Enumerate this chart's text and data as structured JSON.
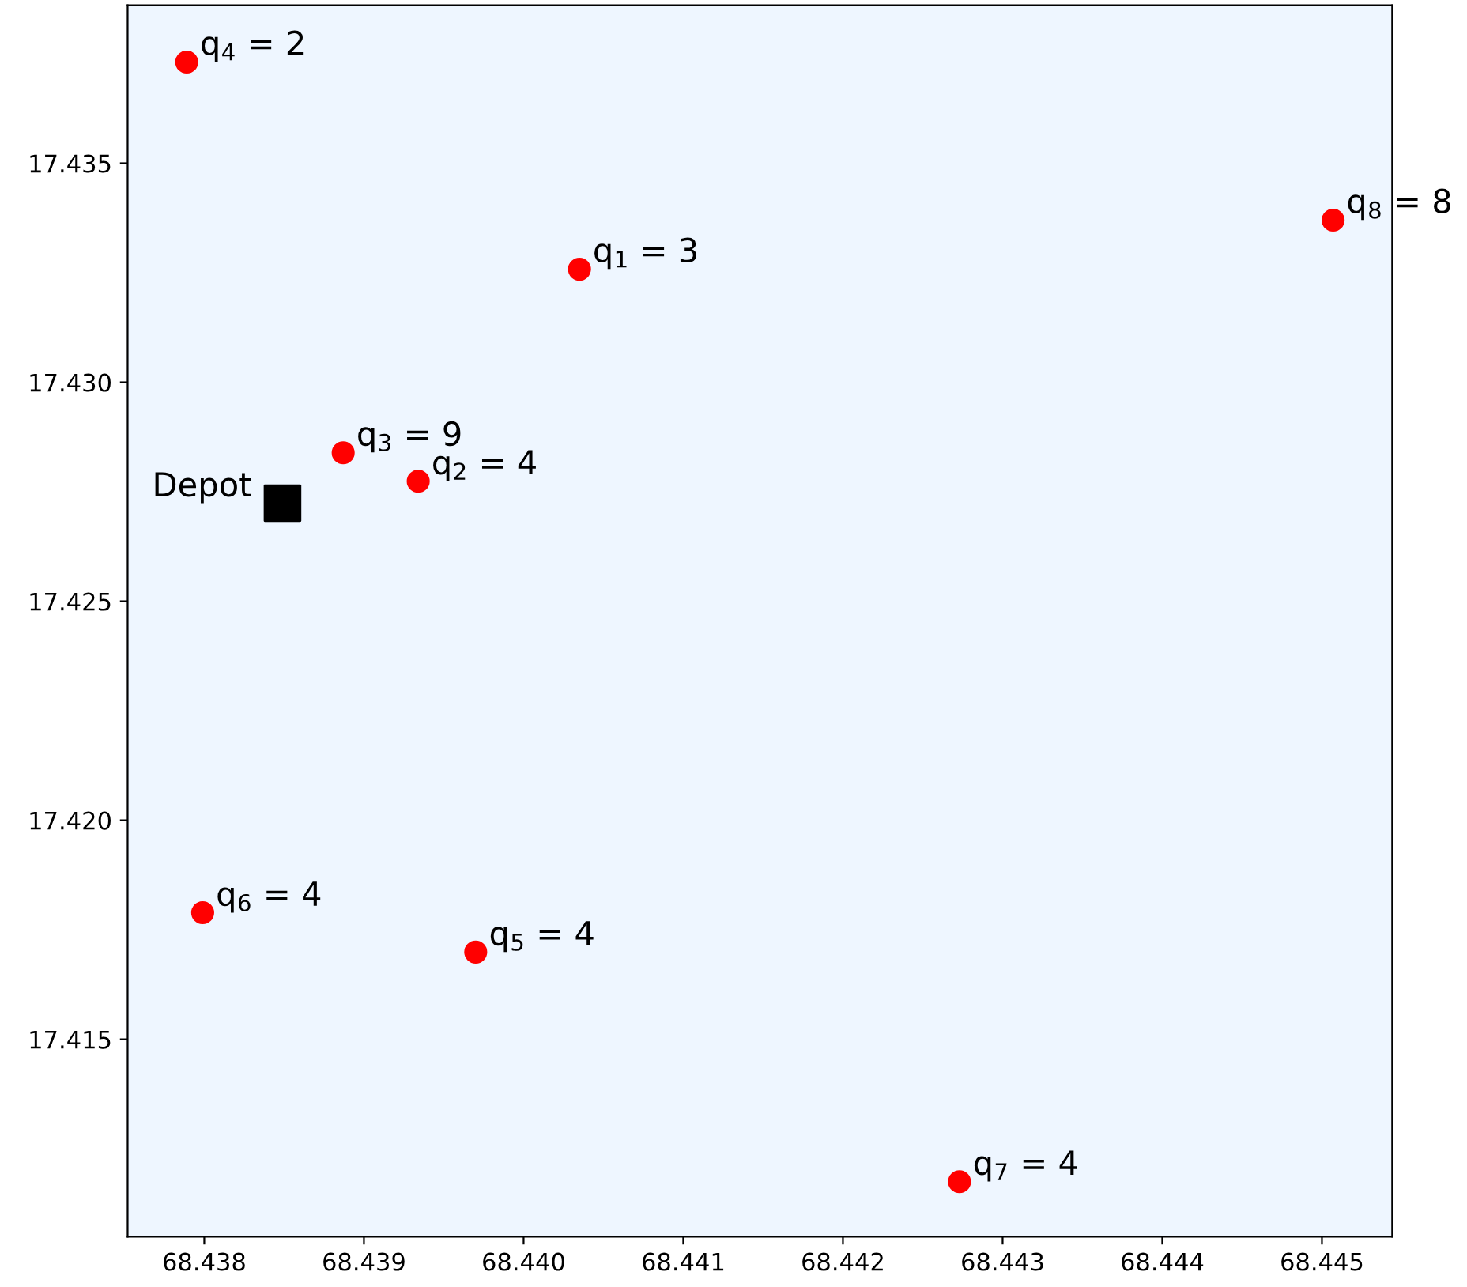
{
  "chart_data": {
    "type": "scatter",
    "series": [
      {
        "color": "#ff0000",
        "marker": "circle",
        "x": [
          68.44035,
          68.43934,
          68.43887,
          68.43789,
          68.4397,
          68.43799,
          68.44273,
          68.44507
        ],
        "values": [
          17.43258,
          17.42774,
          17.42839,
          17.43731,
          17.41699,
          17.41789,
          17.41175,
          17.4337
        ]
      },
      {
        "color": "#000000",
        "marker": "square",
        "x": [
          68.43849
        ],
        "values": [
          17.42724
        ]
      }
    ],
    "annotations": [
      {
        "text": "q$_{1}$ = 3",
        "x": 68.44035,
        "y": 17.43258
      },
      {
        "text": "q$_{2}$ = 4",
        "x": 68.43934,
        "y": 17.42774
      },
      {
        "text": "q$_{3}$ = 9",
        "x": 68.43887,
        "y": 17.42839
      },
      {
        "text": "q$_{4}$ = 2",
        "x": 68.43789,
        "y": 17.43731
      },
      {
        "text": "q$_{5}$ = 4",
        "x": 68.4397,
        "y": 17.41699
      },
      {
        "text": "q$_{6}$ = 4",
        "x": 68.43799,
        "y": 17.41789
      },
      {
        "text": "q$_{7}$ = 4",
        "x": 68.44273,
        "y": 17.41175
      },
      {
        "text": "q$_{8}$ = 8",
        "x": 68.44507,
        "y": 17.4337
      },
      {
        "text": "Depot",
        "x": 68.43849,
        "y": 17.42724
      }
    ],
    "xlim": [
      68.43752,
      68.44544
    ],
    "ylim": [
      17.41049,
      17.43861
    ],
    "xticks": [
      68.438,
      68.439,
      {
        "value": 68.44,
        "label": "68.440"
      },
      68.441,
      68.442,
      68.443,
      68.444,
      68.445
    ],
    "yticks": [
      17.415,
      {
        "value": 17.42,
        "label": "17.420"
      },
      17.425,
      {
        "value": 17.43,
        "label": "17.430"
      },
      17.435
    ],
    "grid": false,
    "legend": false
  }
}
